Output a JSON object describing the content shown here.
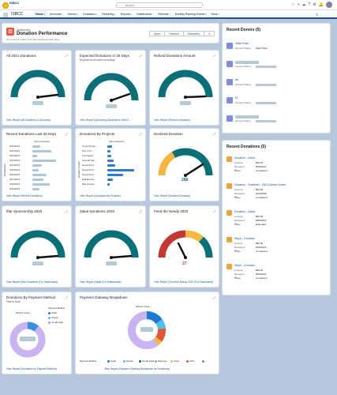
{
  "app": {
    "brand_line1": "ISBCC",
    "app_name": "ISBCC",
    "search_placeholder": "Search...",
    "edit_label": "✎"
  },
  "nav": {
    "items": [
      {
        "label": "Home",
        "active": true
      },
      {
        "label": "Accounts"
      },
      {
        "label": "Donors"
      },
      {
        "label": "Donations"
      },
      {
        "label": "Recurring"
      },
      {
        "label": "Reports"
      },
      {
        "label": "Dashboards"
      },
      {
        "label": "Refunds"
      },
      {
        "label": "Monthly Ranking Entries"
      },
      {
        "label": "More"
      }
    ]
  },
  "header": {
    "eyebrow": "Dashboard",
    "title": "Donation Performance",
    "asof": "As of Oct 12, 2023, 3:04 AM Viewing as Jabi name",
    "buttons": [
      "Open",
      "Refresh",
      "Subscribe"
    ]
  },
  "cards": {
    "all_donations": {
      "title": "All 2021 Donations",
      "link": "View Report (All Donations & Accounts)"
    },
    "expected": {
      "title": "Expected Donations in 30 Days",
      "sub": "Represents all active recurrings",
      "link": "View Report (Upcoming Donations in Next 3..."
    },
    "refund": {
      "title": "Refund Donations Amount",
      "link": "View Report (Refund Donations)"
    },
    "recent": {
      "title": "Recent Donations Last 30 Days",
      "sum_label": "Sum of Amount",
      "ylabel": "Received On",
      "dates": [
        "9/10/2021",
        "9/11/2021",
        "9/12/2021",
        "9/13/2021",
        "9/14/2021",
        "9/15/2021",
        "9/16/2021",
        "9/17/2021",
        "9/18/2021",
        "9/19/2021"
      ],
      "link": "View Report (Recent Donations)"
    },
    "projects": {
      "title": "Donations By Projects",
      "sum_label": "Sum of Amount",
      "ylabel": "Donation Project",
      "rows": [
        "Covid-19 He...",
        "Pay it Fo...",
        "Fundraiser...",
        "Funeral Ser...",
        "General Fu...",
        "General Fu...",
        "General Fu...",
        "Hall Rental",
        "Iftar Grants"
      ],
      "link": "View Report (Donations By Projects)"
    },
    "declined": {
      "title": "Declined Donation",
      "value": "288",
      "link": "View Report (Declined Donation)"
    },
    "iftar": {
      "title": "Iftar Sponsorship 2020",
      "link": "View Report (Iftar Donations (For Dashboard))"
    },
    "zakat": {
      "title": "Zakat Donations 2020",
      "link": "View Report (Zakat (For Dashboard))"
    },
    "feed": {
      "title": "Feed the Needy 2020",
      "value": "27",
      "link": "View Report (Feed the Needy 2020 (For Dashboard))"
    },
    "payment_method": {
      "title": "Donations By Payment Method",
      "sub": "Year to Date",
      "legend_title": "Payment Method",
      "center_label": "Record Count",
      "legend": [
        "Cash",
        "Check",
        "Credit Card"
      ],
      "link": "View Report (Donations by Payment Method)"
    },
    "gateway": {
      "title": "Payment Gateway Breakdown",
      "center_label": "Record Count",
      "legend_title": "Payment Method",
      "legend": [
        "Cash",
        "Check",
        "Credit Card",
        "Discover",
        "Card",
        "ACH",
        "..."
      ],
      "link": "View Report (Payment Gateway Breakdown for Donations)"
    }
  },
  "recent_donors": {
    "title": "Recent Donors (5)",
    "label": "Account Name",
    "items": [
      {
        "name": "Zafar Khan",
        "value": "Zafar Khan"
      },
      {
        "name": "",
        "value": ""
      },
      {
        "name": "Ah",
        "value": ""
      },
      {
        "name": "M",
        "value": ""
      },
      {
        "name": "",
        "value": ""
      }
    ]
  },
  "recent_donations": {
    "title": "Recent Donations (5)",
    "items": [
      {
        "name": "Donation - Zakat",
        "fields": [
          [
            "Amount",
            "$50.00"
          ],
          [
            "Received on",
            "8/28/2021"
          ],
          [
            "Stage",
            "Completed"
          ]
        ]
      },
      {
        "name": "Donation - Sustainer - ISB Cultural Center",
        "fields": [
          [
            "Amount",
            "$50.00"
          ],
          [
            "Received on",
            "10/2/2009"
          ],
          [
            "Stage",
            "Completed"
          ]
        ]
      },
      {
        "name": "Donation - Zakat",
        "fields": [
          [
            "Amount",
            "$50.00"
          ],
          [
            "Received on",
            "8/28/2021"
          ],
          [
            "Stage",
            "Refunded"
          ]
        ]
      },
      {
        "name": "Stripe - Donation",
        "fields": [
          [
            "Amount",
            "$50.00"
          ],
          [
            "Received on",
            "8/28/2021"
          ],
          [
            "Stage",
            "Completed"
          ]
        ]
      },
      {
        "name": "Stripe - Donation",
        "fields": [
          [
            "Amount",
            "$50.00"
          ],
          [
            "Received on",
            "8/28/2021"
          ],
          [
            "Stage",
            "Completed"
          ]
        ]
      }
    ]
  },
  "colors": {
    "accent": "#1b5297",
    "gauge_teal": "#0b6f78",
    "gauge_red": "#c23934",
    "orange": "#e9a53a",
    "donor_icon": "#7f8de1"
  }
}
